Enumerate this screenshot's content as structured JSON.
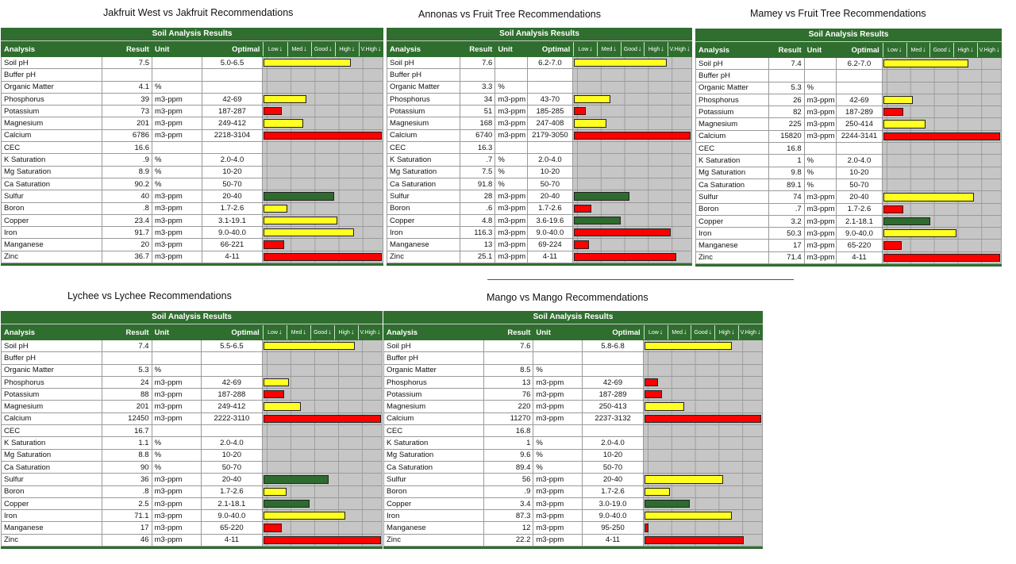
{
  "scale_labels": [
    "Low",
    "Med",
    "Good",
    "High",
    "V.High"
  ],
  "columns": {
    "analysis": "Analysis",
    "result": "Result",
    "unit": "Unit",
    "optimal": "Optimal"
  },
  "colors": {
    "header_green": "#2f6e2f",
    "low": "#ff0000",
    "med": "#ffff22",
    "good": "#2e6b2e",
    "high": "#ffff22",
    "vhigh": "#ff0000",
    "scale_bg": "#c6c6c6"
  },
  "panels": [
    {
      "title": "Jakfruit West vs Jakfruit Recommendations",
      "header": "Soil Analysis Results",
      "rows": [
        {
          "analysis": "Soil pH",
          "result": "7.5",
          "unit": "",
          "optimal": "5.0-6.5",
          "level": 0.74,
          "rating": "high"
        },
        {
          "analysis": "Buffer pH",
          "result": "",
          "unit": "",
          "optimal": "",
          "level": 0,
          "rating": ""
        },
        {
          "analysis": "Organic Matter",
          "result": "4.1",
          "unit": "%",
          "optimal": "",
          "level": 0,
          "rating": ""
        },
        {
          "analysis": "Phosphorus",
          "result": "39",
          "unit": "m3-ppm",
          "optimal": "42-69",
          "level": 0.37,
          "rating": "med"
        },
        {
          "analysis": "Potassium",
          "result": "73",
          "unit": "m3-ppm",
          "optimal": "187-287",
          "level": 0.16,
          "rating": "low"
        },
        {
          "analysis": "Magnesium",
          "result": "201",
          "unit": "m3-ppm",
          "optimal": "249-412",
          "level": 0.34,
          "rating": "med"
        },
        {
          "analysis": "Calcium",
          "result": "6786",
          "unit": "m3-ppm",
          "optimal": "2218-3104",
          "level": 1.0,
          "rating": "vhigh"
        },
        {
          "analysis": "CEC",
          "result": "16.6",
          "unit": "",
          "optimal": "",
          "level": 0,
          "rating": ""
        },
        {
          "analysis": "K Saturation",
          "result": ".9",
          "unit": "%",
          "optimal": "2.0-4.0",
          "level": 0,
          "rating": ""
        },
        {
          "analysis": "Mg Saturation",
          "result": "8.9",
          "unit": "%",
          "optimal": "10-20",
          "level": 0,
          "rating": ""
        },
        {
          "analysis": "Ca Saturation",
          "result": "90.2",
          "unit": "%",
          "optimal": "50-70",
          "level": 0,
          "rating": ""
        },
        {
          "analysis": "Sulfur",
          "result": "40",
          "unit": "m3-ppm",
          "optimal": "20-40",
          "level": 0.6,
          "rating": "good"
        },
        {
          "analysis": "Boron",
          "result": ".8",
          "unit": "m3-ppm",
          "optimal": "1.7-2.6",
          "level": 0.21,
          "rating": "med"
        },
        {
          "analysis": "Copper",
          "result": "23.4",
          "unit": "m3-ppm",
          "optimal": "3.1-19.1",
          "level": 0.63,
          "rating": "high"
        },
        {
          "analysis": "Iron",
          "result": "91.7",
          "unit": "m3-ppm",
          "optimal": "9.0-40.0",
          "level": 0.77,
          "rating": "high"
        },
        {
          "analysis": "Manganese",
          "result": "20",
          "unit": "m3-ppm",
          "optimal": "66-221",
          "level": 0.18,
          "rating": "low"
        },
        {
          "analysis": "Zinc",
          "result": "36.7",
          "unit": "m3-ppm",
          "optimal": "4-11",
          "level": 1.0,
          "rating": "vhigh"
        }
      ]
    },
    {
      "title": "Annonas vs Fruit Tree Recommendations",
      "header": "Soil Analysis Results",
      "rows": [
        {
          "analysis": "Soil pH",
          "result": "7.6",
          "unit": "",
          "optimal": "6.2-7.0",
          "level": 0.8,
          "rating": "high"
        },
        {
          "analysis": "Buffer pH",
          "result": "",
          "unit": "",
          "optimal": "",
          "level": 0,
          "rating": ""
        },
        {
          "analysis": "Organic Matter",
          "result": "3.3",
          "unit": "%",
          "optimal": "",
          "level": 0,
          "rating": ""
        },
        {
          "analysis": "Phosphorus",
          "result": "34",
          "unit": "m3-ppm",
          "optimal": "43-70",
          "level": 0.32,
          "rating": "med"
        },
        {
          "analysis": "Potassium",
          "result": "51",
          "unit": "m3-ppm",
          "optimal": "185-285",
          "level": 0.11,
          "rating": "low"
        },
        {
          "analysis": "Magnesium",
          "result": "168",
          "unit": "m3-ppm",
          "optimal": "247-408",
          "level": 0.29,
          "rating": "med"
        },
        {
          "analysis": "Calcium",
          "result": "6740",
          "unit": "m3-ppm",
          "optimal": "2179-3050",
          "level": 1.0,
          "rating": "vhigh"
        },
        {
          "analysis": "CEC",
          "result": "16.3",
          "unit": "",
          "optimal": "",
          "level": 0,
          "rating": ""
        },
        {
          "analysis": "K Saturation",
          "result": ".7",
          "unit": "%",
          "optimal": "2.0-4.0",
          "level": 0,
          "rating": ""
        },
        {
          "analysis": "Mg Saturation",
          "result": "7.5",
          "unit": "%",
          "optimal": "10-20",
          "level": 0,
          "rating": ""
        },
        {
          "analysis": "Ca Saturation",
          "result": "91.8",
          "unit": "%",
          "optimal": "50-70",
          "level": 0,
          "rating": ""
        },
        {
          "analysis": "Sulfur",
          "result": "28",
          "unit": "m3-ppm",
          "optimal": "20-40",
          "level": 0.48,
          "rating": "good"
        },
        {
          "analysis": "Boron",
          "result": ".6",
          "unit": "m3-ppm",
          "optimal": "1.7-2.6",
          "level": 0.16,
          "rating": "low"
        },
        {
          "analysis": "Copper",
          "result": "4.8",
          "unit": "m3-ppm",
          "optimal": "3.6-19.6",
          "level": 0.41,
          "rating": "good"
        },
        {
          "analysis": "Iron",
          "result": "116.3",
          "unit": "m3-ppm",
          "optimal": "9.0-40.0",
          "level": 0.83,
          "rating": "vhigh"
        },
        {
          "analysis": "Manganese",
          "result": "13",
          "unit": "m3-ppm",
          "optimal": "69-224",
          "level": 0.14,
          "rating": "low"
        },
        {
          "analysis": "Zinc",
          "result": "25.1",
          "unit": "m3-ppm",
          "optimal": "4-11",
          "level": 0.88,
          "rating": "vhigh"
        }
      ]
    },
    {
      "title": "Mamey vs Fruit Tree Recommendations",
      "header": "Soil Analysis Results",
      "rows": [
        {
          "analysis": "Soil pH",
          "result": "7.4",
          "unit": "",
          "optimal": "6.2-7.0",
          "level": 0.73,
          "rating": "high"
        },
        {
          "analysis": "Buffer pH",
          "result": "",
          "unit": "",
          "optimal": "",
          "level": 0,
          "rating": ""
        },
        {
          "analysis": "Organic Matter",
          "result": "5.3",
          "unit": "%",
          "optimal": "",
          "level": 0,
          "rating": ""
        },
        {
          "analysis": "Phosphorus",
          "result": "26",
          "unit": "m3-ppm",
          "optimal": "42-69",
          "level": 0.26,
          "rating": "med"
        },
        {
          "analysis": "Potassium",
          "result": "82",
          "unit": "m3-ppm",
          "optimal": "187-289",
          "level": 0.18,
          "rating": "low"
        },
        {
          "analysis": "Magnesium",
          "result": "225",
          "unit": "m3-ppm",
          "optimal": "250-414",
          "level": 0.37,
          "rating": "med"
        },
        {
          "analysis": "Calcium",
          "result": "15820",
          "unit": "m3-ppm",
          "optimal": "2244-3141",
          "level": 1.0,
          "rating": "vhigh"
        },
        {
          "analysis": "CEC",
          "result": "16.8",
          "unit": "",
          "optimal": "",
          "level": 0,
          "rating": ""
        },
        {
          "analysis": "K Saturation",
          "result": "1",
          "unit": "%",
          "optimal": "2.0-4.0",
          "level": 0,
          "rating": ""
        },
        {
          "analysis": "Mg Saturation",
          "result": "9.8",
          "unit": "%",
          "optimal": "10-20",
          "level": 0,
          "rating": ""
        },
        {
          "analysis": "Ca Saturation",
          "result": "89.1",
          "unit": "%",
          "optimal": "50-70",
          "level": 0,
          "rating": ""
        },
        {
          "analysis": "Sulfur",
          "result": "74",
          "unit": "m3-ppm",
          "optimal": "20-40",
          "level": 0.78,
          "rating": "high"
        },
        {
          "analysis": "Boron",
          "result": ".7",
          "unit": "m3-ppm",
          "optimal": "1.7-2.6",
          "level": 0.18,
          "rating": "low"
        },
        {
          "analysis": "Copper",
          "result": "3.2",
          "unit": "m3-ppm",
          "optimal": "2.1-18.1",
          "level": 0.41,
          "rating": "good"
        },
        {
          "analysis": "Iron",
          "result": "50.3",
          "unit": "m3-ppm",
          "optimal": "9.0-40.0",
          "level": 0.63,
          "rating": "high"
        },
        {
          "analysis": "Manganese",
          "result": "17",
          "unit": "m3-ppm",
          "optimal": "65-220",
          "level": 0.17,
          "rating": "low"
        },
        {
          "analysis": "Zinc",
          "result": "71.4",
          "unit": "m3-ppm",
          "optimal": "4-11",
          "level": 1.0,
          "rating": "vhigh"
        }
      ]
    },
    {
      "title": "Lychee vs Lychee Recommendations",
      "header": "Soil Analysis Results",
      "rows": [
        {
          "analysis": "Soil pH",
          "result": "7.4",
          "unit": "",
          "optimal": "5.5-6.5",
          "level": 0.78,
          "rating": "high"
        },
        {
          "analysis": "Buffer pH",
          "result": "",
          "unit": "",
          "optimal": "",
          "level": 0,
          "rating": ""
        },
        {
          "analysis": "Organic Matter",
          "result": "5.3",
          "unit": "%",
          "optimal": "",
          "level": 0,
          "rating": ""
        },
        {
          "analysis": "Phosphorus",
          "result": "24",
          "unit": "m3-ppm",
          "optimal": "42-69",
          "level": 0.23,
          "rating": "med"
        },
        {
          "analysis": "Potassium",
          "result": "88",
          "unit": "m3-ppm",
          "optimal": "187-288",
          "level": 0.19,
          "rating": "low"
        },
        {
          "analysis": "Magnesium",
          "result": "201",
          "unit": "m3-ppm",
          "optimal": "249-412",
          "level": 0.33,
          "rating": "med"
        },
        {
          "analysis": "Calcium",
          "result": "12450",
          "unit": "m3-ppm",
          "optimal": "2222-3110",
          "level": 1.0,
          "rating": "vhigh"
        },
        {
          "analysis": "CEC",
          "result": "16.7",
          "unit": "",
          "optimal": "",
          "level": 0,
          "rating": ""
        },
        {
          "analysis": "K Saturation",
          "result": "1.1",
          "unit": "%",
          "optimal": "2.0-4.0",
          "level": 0,
          "rating": ""
        },
        {
          "analysis": "Mg Saturation",
          "result": "8.8",
          "unit": "%",
          "optimal": "10-20",
          "level": 0,
          "rating": ""
        },
        {
          "analysis": "Ca Saturation",
          "result": "90",
          "unit": "%",
          "optimal": "50-70",
          "level": 0,
          "rating": ""
        },
        {
          "analysis": "Sulfur",
          "result": "36",
          "unit": "m3-ppm",
          "optimal": "20-40",
          "level": 0.56,
          "rating": "good"
        },
        {
          "analysis": "Boron",
          "result": ".8",
          "unit": "m3-ppm",
          "optimal": "1.7-2.6",
          "level": 0.21,
          "rating": "med"
        },
        {
          "analysis": "Copper",
          "result": "2.5",
          "unit": "m3-ppm",
          "optimal": "2.1-18.1",
          "level": 0.4,
          "rating": "good"
        },
        {
          "analysis": "Iron",
          "result": "71.1",
          "unit": "m3-ppm",
          "optimal": "9.0-40.0",
          "level": 0.7,
          "rating": "high"
        },
        {
          "analysis": "Manganese",
          "result": "17",
          "unit": "m3-ppm",
          "optimal": "65-220",
          "level": 0.17,
          "rating": "low"
        },
        {
          "analysis": "Zinc",
          "result": "46",
          "unit": "m3-ppm",
          "optimal": "4-11",
          "level": 1.0,
          "rating": "vhigh"
        }
      ]
    },
    {
      "title": "Mango vs Mango Recommendations",
      "header": "Soil Analysis Results",
      "rows": [
        {
          "analysis": "Soil pH",
          "result": "7.6",
          "unit": "",
          "optimal": "5.8-6.8",
          "level": 0.75,
          "rating": "high"
        },
        {
          "analysis": "Buffer pH",
          "result": "",
          "unit": "",
          "optimal": "",
          "level": 0,
          "rating": ""
        },
        {
          "analysis": "Organic Matter",
          "result": "8.5",
          "unit": "%",
          "optimal": "",
          "level": 0,
          "rating": ""
        },
        {
          "analysis": "Phosphorus",
          "result": "13",
          "unit": "m3-ppm",
          "optimal": "42-69",
          "level": 0.13,
          "rating": "low"
        },
        {
          "analysis": "Potassium",
          "result": "76",
          "unit": "m3-ppm",
          "optimal": "187-289",
          "level": 0.16,
          "rating": "low"
        },
        {
          "analysis": "Magnesium",
          "result": "220",
          "unit": "m3-ppm",
          "optimal": "250-413",
          "level": 0.35,
          "rating": "med"
        },
        {
          "analysis": "Calcium",
          "result": "11270",
          "unit": "m3-ppm",
          "optimal": "2237-3132",
          "level": 1.0,
          "rating": "vhigh"
        },
        {
          "analysis": "CEC",
          "result": "16.8",
          "unit": "",
          "optimal": "",
          "level": 0,
          "rating": ""
        },
        {
          "analysis": "K Saturation",
          "result": "1",
          "unit": "%",
          "optimal": "2.0-4.0",
          "level": 0,
          "rating": ""
        },
        {
          "analysis": "Mg Saturation",
          "result": "9.6",
          "unit": "%",
          "optimal": "10-20",
          "level": 0,
          "rating": ""
        },
        {
          "analysis": "Ca Saturation",
          "result": "89.4",
          "unit": "%",
          "optimal": "50-70",
          "level": 0,
          "rating": ""
        },
        {
          "analysis": "Sulfur",
          "result": "56",
          "unit": "m3-ppm",
          "optimal": "20-40",
          "level": 0.68,
          "rating": "high"
        },
        {
          "analysis": "Boron",
          "result": ".9",
          "unit": "m3-ppm",
          "optimal": "1.7-2.6",
          "level": 0.23,
          "rating": "med"
        },
        {
          "analysis": "Copper",
          "result": "3.4",
          "unit": "m3-ppm",
          "optimal": "3.0-19.0",
          "level": 0.4,
          "rating": "good"
        },
        {
          "analysis": "Iron",
          "result": "87.3",
          "unit": "m3-ppm",
          "optimal": "9.0-40.0",
          "level": 0.75,
          "rating": "high"
        },
        {
          "analysis": "Manganese",
          "result": "12",
          "unit": "m3-ppm",
          "optimal": "95-250",
          "level": 0.05,
          "rating": "low"
        },
        {
          "analysis": "Zinc",
          "result": "22.2",
          "unit": "m3-ppm",
          "optimal": "4-11",
          "level": 0.85,
          "rating": "vhigh"
        }
      ]
    }
  ]
}
